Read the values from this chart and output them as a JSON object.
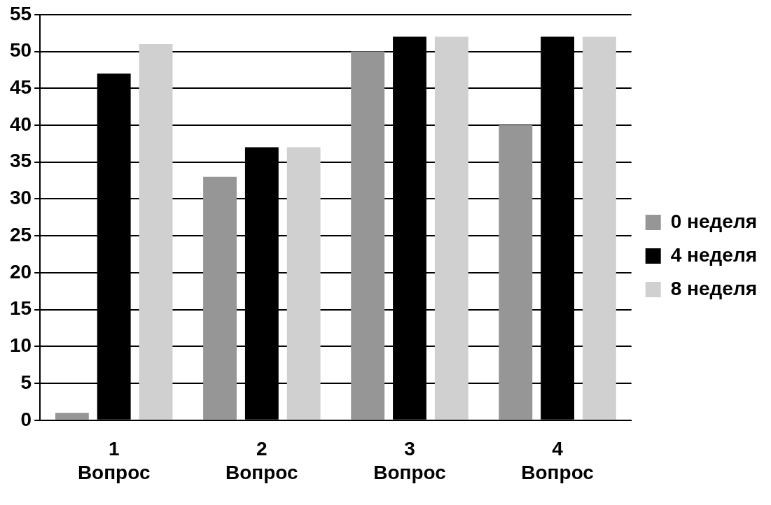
{
  "chart_data": {
    "type": "bar",
    "categories": [
      "1 Вопрос",
      "2 Вопрос",
      "3 Вопрос",
      "4 Вопрос"
    ],
    "series": [
      {
        "name": "0 неделя",
        "color": "#969696",
        "values": [
          1,
          33,
          50,
          40
        ]
      },
      {
        "name": "4 неделя",
        "color": "#000000",
        "values": [
          47,
          37,
          52,
          52
        ]
      },
      {
        "name": "8 неделя",
        "color": "#d0d0d0",
        "values": [
          51,
          37,
          52,
          52
        ]
      }
    ],
    "ylim": [
      0,
      55
    ],
    "yticks": [
      0,
      5,
      10,
      15,
      20,
      25,
      30,
      35,
      40,
      45,
      50,
      55
    ],
    "grid": "y",
    "legend": "right"
  }
}
